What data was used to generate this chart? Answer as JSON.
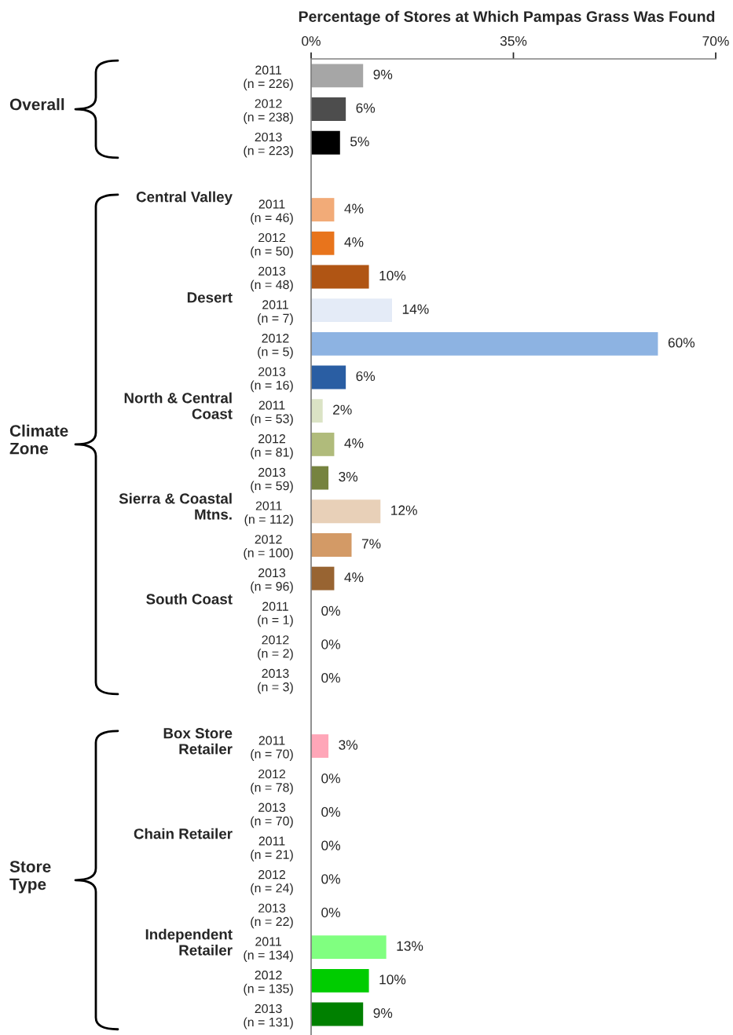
{
  "chart_data": {
    "type": "bar",
    "orientation": "horizontal",
    "title": "Percentage of Stores at Which Pampas Grass Was Found",
    "categories": [
      "2011\n(n = 226)",
      "2012\n(n = 238)",
      "2013\n(n = 223)",
      null,
      "2011\n(n = 46)",
      "2012\n(n = 50)",
      "2013\n(n = 48)",
      "2011\n(n = 7)",
      "2012\n(n = 5)",
      "2013\n(n = 16)",
      "2011\n(n = 53)",
      "2012\n(n = 81)",
      "2013\n(n = 59)",
      "2011\n(n = 112)",
      "2012\n(n = 100)",
      "2013\n(n = 96)",
      "2011\n(n = 1)",
      "2012\n(n = 2)",
      "2013\n(n = 3)",
      null,
      "2011\n(n = 70)",
      "2012\n(n = 78)",
      "2013\n(n = 70)",
      "2011\n(n = 21)",
      "2012\n(n = 24)",
      "2013\n(n = 22)",
      "2011\n(n = 134)",
      "2012\n(n = 135)",
      "2013\n(n = 131)"
    ],
    "values": [
      9,
      6,
      5,
      null,
      4,
      4,
      10,
      14,
      60,
      6,
      2,
      4,
      3,
      12,
      7,
      4,
      0,
      0,
      0,
      null,
      3,
      0,
      0,
      0,
      0,
      0,
      13,
      10,
      9
    ],
    "value_labels": [
      "9%",
      "6%",
      "5%",
      null,
      "4%",
      "4%",
      "10%",
      "14%",
      "60%",
      "6%",
      "2%",
      "4%",
      "3%",
      "12%",
      "7%",
      "4%",
      "0%",
      "0%",
      "0%",
      null,
      "3%",
      "0%",
      "0%",
      "0%",
      "0%",
      "0%",
      "13%",
      "10%",
      "9%"
    ],
    "colors": [
      "#a6a6a6",
      "#4d4d4d",
      "#000000",
      null,
      "#f2ab78",
      "#e8741c",
      "#b05514",
      "#e4ebf7",
      "#8db3e2",
      "#2a5ea3",
      "#dbe3c5",
      "#b0bb7b",
      "#76833f",
      "#e8d0b8",
      "#d39a66",
      "#986432",
      "#c0c0c0",
      "#808080",
      "#404040",
      null,
      "#ffa6b8",
      "#ff6080",
      "#c00030",
      "#c0c0c0",
      "#808080",
      "#404040",
      "#80ff80",
      "#00cc00",
      "#008000"
    ],
    "xlim": [
      0,
      70
    ],
    "xticks": [
      {
        "value": 0,
        "label": "0%"
      },
      {
        "value": 35,
        "label": "35%"
      },
      {
        "value": 70,
        "label": "70%"
      }
    ],
    "annotations": [
      "Overall",
      "Central Valley",
      "Desert",
      "North & Central\nCoast",
      "Sierra & Coastal\nMtns.",
      "South Coast",
      "Climate\nZone",
      "Box Store\nRetailer",
      "Chain Retailer",
      "Independent\nRetailer",
      "Store\nType"
    ]
  }
}
